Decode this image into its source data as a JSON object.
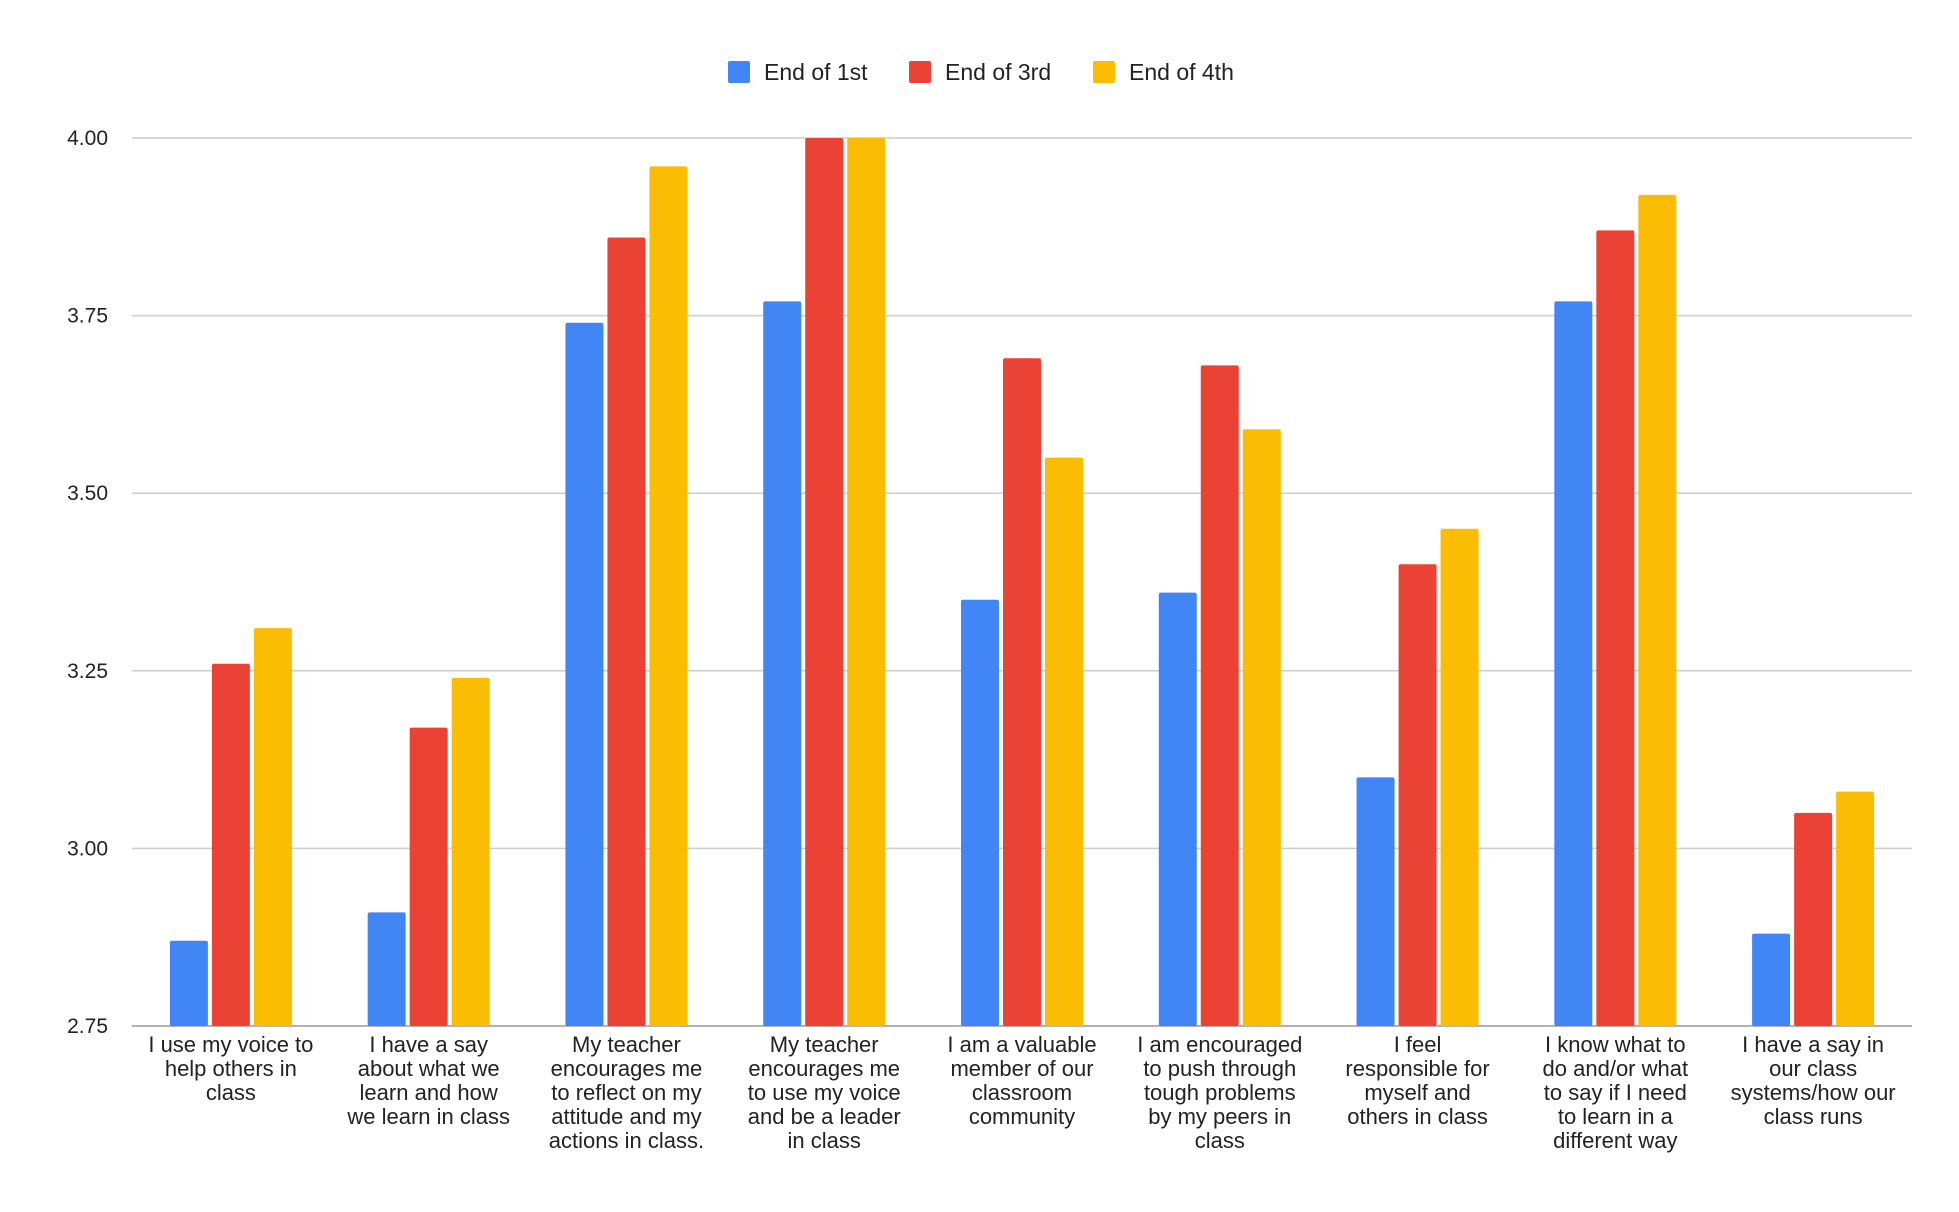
{
  "chart_data": {
    "type": "bar",
    "title": "",
    "xlabel": "",
    "ylabel": "",
    "ylim": [
      2.75,
      4.0
    ],
    "yticks": [
      "2.75",
      "3.00",
      "3.25",
      "3.50",
      "3.75",
      "4.00"
    ],
    "grid": true,
    "legend_position": "top-center",
    "categories": [
      [
        "I use my voice to",
        "help others in",
        "class"
      ],
      [
        "I have a say",
        "about what we",
        "learn and how",
        "we learn in class"
      ],
      [
        "My teacher",
        "encourages me",
        "to reflect on my",
        "attitude and my",
        "actions in class."
      ],
      [
        "My teacher",
        "encourages me",
        "to use my voice",
        "and be a leader",
        "in class"
      ],
      [
        "I am a valuable",
        "member of our",
        "classroom",
        "community"
      ],
      [
        "I am encouraged",
        "to push through",
        "tough problems",
        "by my peers in",
        "class"
      ],
      [
        "I feel",
        "responsible for",
        "myself and",
        "others in class"
      ],
      [
        "I know what to",
        "do and/or what",
        "to say if I need",
        "to learn in a",
        "different way"
      ],
      [
        "I have a say in",
        "our class",
        "systems/how our",
        "class runs"
      ]
    ],
    "series": [
      {
        "name": "End of 1st",
        "color": "#4285F4",
        "values": [
          2.87,
          2.91,
          3.74,
          3.77,
          3.35,
          3.36,
          3.1,
          3.77,
          2.88
        ]
      },
      {
        "name": "End of 3rd",
        "color": "#EA4335",
        "values": [
          3.26,
          3.17,
          3.86,
          4.0,
          3.69,
          3.68,
          3.4,
          3.87,
          3.05
        ]
      },
      {
        "name": "End of 4th",
        "color": "#FBBC04",
        "values": [
          3.31,
          3.24,
          3.96,
          4.0,
          3.55,
          3.59,
          3.45,
          3.92,
          3.08
        ]
      }
    ]
  }
}
